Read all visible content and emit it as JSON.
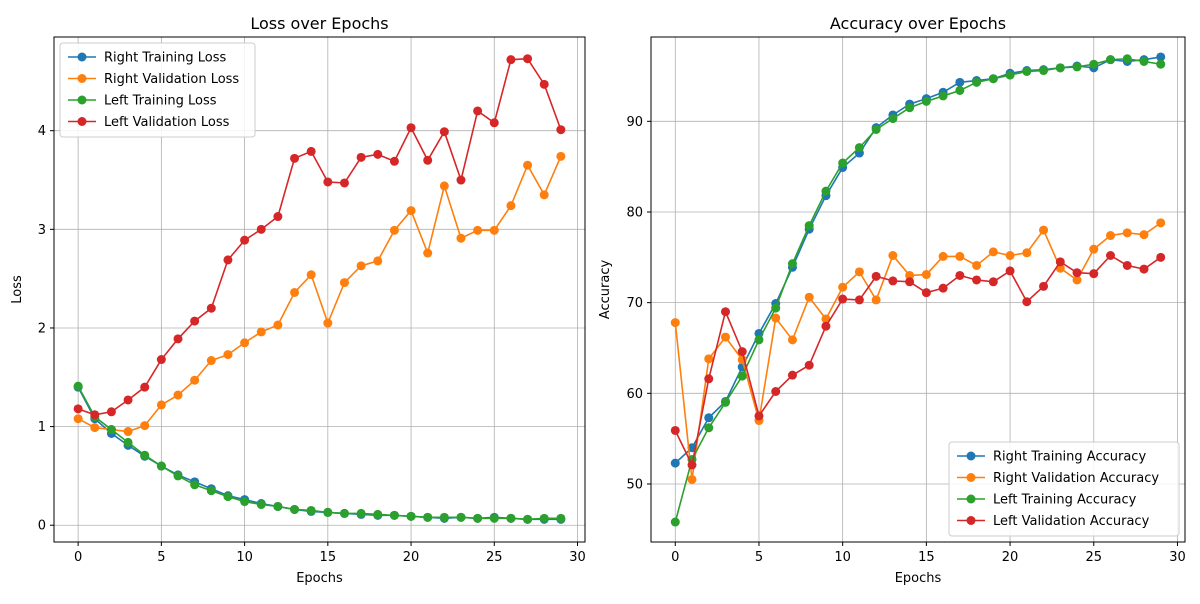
{
  "chart_data": [
    {
      "type": "line",
      "title": "Loss over Epochs",
      "xlabel": "Epochs",
      "ylabel": "Loss",
      "xlim": [
        -1.45,
        30.45
      ],
      "ylim": [
        -0.17,
        4.95
      ],
      "xticks": [
        0,
        5,
        10,
        15,
        20,
        25,
        30
      ],
      "yticks": [
        0,
        1,
        2,
        3,
        4
      ],
      "grid": true,
      "legend": "top-left",
      "x": [
        0,
        1,
        2,
        3,
        4,
        5,
        6,
        7,
        8,
        9,
        10,
        11,
        12,
        13,
        14,
        15,
        16,
        17,
        18,
        19,
        20,
        21,
        22,
        23,
        24,
        25,
        26,
        27,
        28,
        29
      ],
      "series": [
        {
          "name": "Right Training Loss",
          "color": "#1f77b4",
          "values": [
            1.4,
            1.08,
            0.93,
            0.81,
            0.7,
            0.6,
            0.51,
            0.44,
            0.37,
            0.3,
            0.26,
            0.22,
            0.19,
            0.16,
            0.14,
            0.13,
            0.12,
            0.11,
            0.1,
            0.1,
            0.09,
            0.08,
            0.07,
            0.08,
            0.07,
            0.08,
            0.07,
            0.06,
            0.06,
            0.06
          ]
        },
        {
          "name": "Right Validation Loss",
          "color": "#ff7f0e",
          "values": [
            1.08,
            0.99,
            0.97,
            0.95,
            1.01,
            1.22,
            1.32,
            1.47,
            1.67,
            1.73,
            1.85,
            1.96,
            2.03,
            2.36,
            2.54,
            2.05,
            2.46,
            2.63,
            2.68,
            2.99,
            3.19,
            2.76,
            3.44,
            2.91,
            2.99,
            2.99,
            3.24,
            3.65,
            3.35,
            3.74
          ]
        },
        {
          "name": "Left Training Loss",
          "color": "#2ca02c",
          "values": [
            1.41,
            1.1,
            0.97,
            0.84,
            0.71,
            0.6,
            0.5,
            0.41,
            0.35,
            0.29,
            0.24,
            0.21,
            0.19,
            0.16,
            0.15,
            0.13,
            0.12,
            0.12,
            0.11,
            0.1,
            0.09,
            0.08,
            0.08,
            0.08,
            0.07,
            0.07,
            0.07,
            0.06,
            0.07,
            0.07
          ]
        },
        {
          "name": "Left Validation Loss",
          "color": "#d62728",
          "values": [
            1.18,
            1.12,
            1.15,
            1.27,
            1.4,
            1.68,
            1.89,
            2.07,
            2.2,
            2.69,
            2.89,
            3.0,
            3.13,
            3.72,
            3.79,
            3.48,
            3.47,
            3.73,
            3.76,
            3.69,
            4.03,
            3.7,
            3.99,
            3.5,
            4.2,
            4.08,
            4.72,
            4.73,
            4.47,
            4.01
          ]
        }
      ]
    },
    {
      "type": "line",
      "title": "Accuracy over Epochs",
      "xlabel": "Epochs",
      "ylabel": "Accuracy",
      "xlim": [
        -1.45,
        30.45
      ],
      "ylim": [
        43.6,
        99.3
      ],
      "xticks": [
        0,
        5,
        10,
        15,
        20,
        25,
        30
      ],
      "yticks": [
        50,
        60,
        70,
        80,
        90
      ],
      "grid": true,
      "legend": "bottom-right",
      "x": [
        0,
        1,
        2,
        3,
        4,
        5,
        6,
        7,
        8,
        9,
        10,
        11,
        12,
        13,
        14,
        15,
        16,
        17,
        18,
        19,
        20,
        21,
        22,
        23,
        24,
        25,
        26,
        27,
        28,
        29
      ],
      "series": [
        {
          "name": "Right Training Accuracy",
          "color": "#1f77b4",
          "values": [
            52.3,
            54.0,
            57.3,
            59.1,
            62.9,
            66.6,
            69.9,
            73.9,
            78.1,
            81.8,
            84.9,
            86.5,
            89.3,
            90.7,
            91.9,
            92.5,
            93.2,
            94.3,
            94.5,
            94.7,
            95.3,
            95.6,
            95.7,
            95.9,
            96.1,
            95.9,
            96.8,
            96.6,
            96.8,
            97.1
          ]
        },
        {
          "name": "Right Validation Accuracy",
          "color": "#ff7f0e",
          "values": [
            67.8,
            50.5,
            63.8,
            66.2,
            63.7,
            57.0,
            68.3,
            65.9,
            70.6,
            68.2,
            71.7,
            73.4,
            70.3,
            75.2,
            73.0,
            73.1,
            75.1,
            75.1,
            74.1,
            75.6,
            75.2,
            75.5,
            78.0,
            73.8,
            72.5,
            75.9,
            77.4,
            77.7,
            77.5,
            78.8
          ]
        },
        {
          "name": "Left Training Accuracy",
          "color": "#2ca02c",
          "values": [
            45.8,
            52.7,
            56.2,
            59.0,
            61.9,
            65.9,
            69.4,
            74.3,
            78.5,
            82.3,
            85.4,
            87.1,
            89.1,
            90.3,
            91.5,
            92.2,
            92.8,
            93.4,
            94.3,
            94.7,
            95.1,
            95.5,
            95.6,
            95.9,
            96.0,
            96.3,
            96.8,
            96.9,
            96.6,
            96.3
          ]
        },
        {
          "name": "Left Validation Accuracy",
          "color": "#d62728",
          "values": [
            55.9,
            52.1,
            61.6,
            69.0,
            64.6,
            57.5,
            60.2,
            62.0,
            63.1,
            67.4,
            70.4,
            70.3,
            72.9,
            72.4,
            72.3,
            71.1,
            71.6,
            73.0,
            72.5,
            72.3,
            73.5,
            70.1,
            71.8,
            74.5,
            73.3,
            73.2,
            75.2,
            74.1,
            73.7,
            75.0
          ]
        }
      ]
    }
  ]
}
